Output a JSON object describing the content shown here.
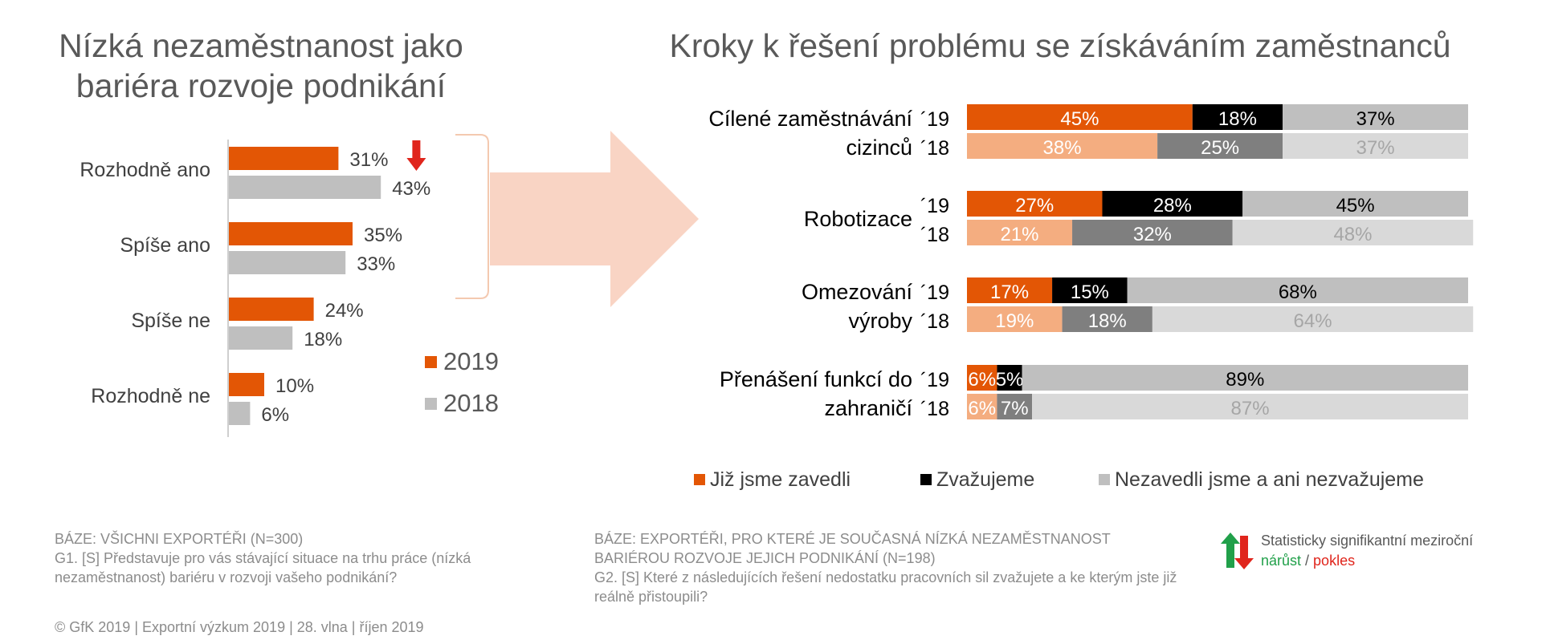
{
  "left_title": "Nízká nezaměstnanost jako bariéra rozvoje podnikání",
  "right_title": "Kroky k řešení problému se získáváním zaměstnanců",
  "colors": {
    "orange_2019": "#e35605",
    "grey_2018": "#bfbfbf",
    "light_orange": "#f4ad80",
    "black": "#000000",
    "dark_grey": "#7f7f7f",
    "mid_grey": "#bfbfbf",
    "light_grey": "#d9d9d9",
    "arrow_fill": "#f9d4c4",
    "sig_red": "#e0251c",
    "sig_green": "#21a04a"
  },
  "chart_data": [
    {
      "type": "bar",
      "orientation": "horizontal",
      "categories": [
        "Rozhodně ano",
        "Spíše ano",
        "Spíše ne",
        "Rozhodně ne"
      ],
      "series": [
        {
          "name": "2019",
          "values": [
            31,
            35,
            24,
            10
          ],
          "labels": [
            "31%",
            "35%",
            "24%",
            "10%"
          ]
        },
        {
          "name": "2018",
          "values": [
            43,
            33,
            18,
            6
          ],
          "labels": [
            "43%",
            "33%",
            "18%",
            "6%"
          ]
        }
      ],
      "unit": "%",
      "legend": {
        "placement": "right",
        "entries": [
          "2019",
          "2018"
        ]
      },
      "annotations": [
        {
          "category": "Rozhodně ano",
          "series": "2019",
          "marker": "significant-decrease-arrow"
        }
      ],
      "grid": false
    },
    {
      "type": "bar",
      "orientation": "horizontal",
      "stacked": "100%",
      "categories": [
        "Cílené zaměstnávání cizinců",
        "Robotizace",
        "Omezování výroby",
        "Přenášení funkcí do zahraničí"
      ],
      "category_lines": [
        [
          "Cílené zaměstnávání",
          "cizinců"
        ],
        [
          "Robotizace"
        ],
        [
          "Omezování",
          "výroby"
        ],
        [
          "Přenášení funkcí do",
          "zahraničí"
        ]
      ],
      "years": [
        "´19",
        "´18"
      ],
      "series": [
        {
          "name": "Již jsme zavedli",
          "values_2019": [
            45,
            27,
            17,
            6
          ],
          "values_2018": [
            38,
            21,
            19,
            6
          ]
        },
        {
          "name": "Zvažujeme",
          "values_2019": [
            18,
            28,
            15,
            5
          ],
          "values_2018": [
            25,
            32,
            18,
            7
          ]
        },
        {
          "name": "Nezavedli jsme a ani nezvažujeme",
          "values_2019": [
            37,
            45,
            68,
            89
          ],
          "values_2018": [
            37,
            48,
            64,
            87
          ]
        }
      ],
      "unit": "%",
      "legend": {
        "placement": "bottom",
        "entries": [
          "Již jsme zavedli",
          "Zvažujeme",
          "Nezavedli jsme a ani nezvažujeme"
        ]
      },
      "grid": false
    }
  ],
  "footnotes": {
    "left_base": "BÁZE: VŠICHNI EXPORTÉŘI (N=300)",
    "left_question": "G1. [S] Představuje pro vás stávající situace na trhu práce (nízká nezaměstnanost) bariéru v rozvoji vašeho podnikání?",
    "mid_base": "BÁZE: EXPORTÉŘI, PRO KTERÉ JE SOUČASNÁ NÍZKÁ NEZAMĚSTNANOST BARIÉROU ROZVOJE JEJICH PODNIKÁNÍ (N=198)",
    "mid_question": "G2. [S] Které z následujících řešení nedostatku pracovních sil zvažujete a ke kterým jste již reálně přistoupili?",
    "significance_text": "Statisticky signifikantní meziroční",
    "significance_up": "nárůst",
    "significance_sep": " / ",
    "significance_down": "pokles",
    "copyright": "© GfK 2019 | Exportní výzkum 2019 | 28. vlna | říjen 2019"
  }
}
